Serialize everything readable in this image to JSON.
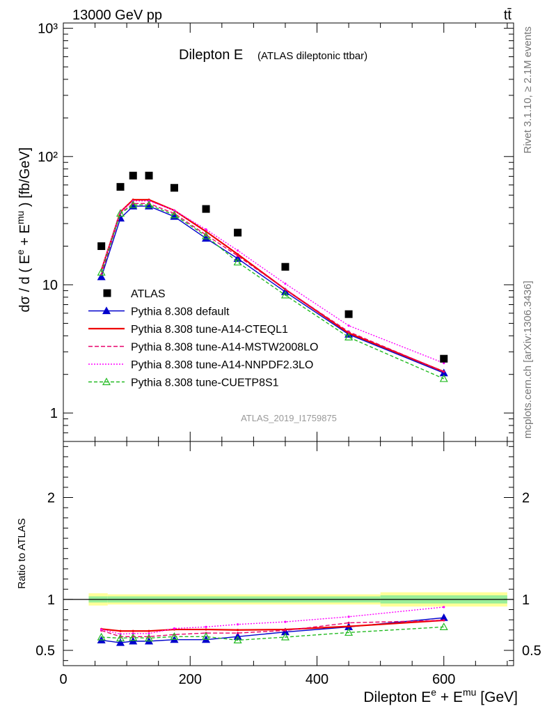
{
  "header": {
    "energy_label": "13000 GeV pp",
    "process_label": "tt̄",
    "rivet_label": "Rivet 3.1.10, ≥ 2.1M events",
    "mcplots_label": "mcplots.cern.ch [arXiv:1306.3436]",
    "analysis_label": "ATLAS_2019_I1759875"
  },
  "chart_data": [
    {
      "type": "line",
      "title": "Dilepton E",
      "subtitle": "(ATLAS dileptonic ttbar)",
      "ylabel": "dσ / d ( E^e + E^mu ) [fb/GeV]",
      "yscale": "log",
      "xlim": [
        0,
        710
      ],
      "ylim": [
        0.6,
        1100
      ],
      "y_ticks": [
        {
          "v": 1,
          "label": "1"
        },
        {
          "v": 10,
          "label": "10"
        },
        {
          "v": 100,
          "label": "10²"
        },
        {
          "v": 1000,
          "label": "10³"
        }
      ],
      "legend_position": "lower-left",
      "data": {
        "name": "ATLAS",
        "x": [
          60,
          90,
          110,
          135,
          175,
          225,
          275,
          350,
          450,
          600
        ],
        "y": [
          20,
          58,
          71,
          71,
          57,
          39,
          25.5,
          13.8,
          5.9,
          2.65
        ]
      },
      "series": [
        {
          "name": "Pythia 8.308 default",
          "color": "#0000cc",
          "dash": "",
          "marker": "triangle-filled",
          "y": [
            11.5,
            33,
            41,
            41,
            34,
            23,
            16,
            8.8,
            4.1,
            2.05
          ]
        },
        {
          "name": "Pythia 8.308 tune-A14-CTEQL1",
          "color": "#ee0000",
          "dash": "",
          "marker": "none",
          "y": [
            13,
            37,
            46,
            46,
            38,
            26,
            17.3,
            9.2,
            4.2,
            2.1
          ]
        },
        {
          "name": "Pythia 8.308 tune-A14-MSTW2008LO",
          "color": "#e8006a",
          "dash": "6,3",
          "marker": "none",
          "y": [
            12,
            36,
            43,
            43,
            36,
            24.5,
            16.8,
            9.2,
            4.3,
            2.1
          ]
        },
        {
          "name": "Pythia 8.308 tune-A14-NNPDF2.3LO",
          "color": "#ff00ff",
          "dash": "2,2",
          "marker": "none",
          "y": [
            13,
            37,
            45,
            45,
            38,
            27,
            18.5,
            10.2,
            4.8,
            2.45
          ]
        },
        {
          "name": "Pythia 8.308 tune-CUETP8S1",
          "color": "#22bb22",
          "dash": "5,3",
          "marker": "triangle-open",
          "y": [
            12.5,
            36,
            42,
            42,
            35,
            24,
            15,
            8.3,
            3.9,
            1.85
          ]
        }
      ]
    },
    {
      "type": "line",
      "xlabel": "Dilepton E^e + E^mu [GeV]",
      "ylabel": "Ratio to ATLAS",
      "xlim": [
        0,
        710
      ],
      "ylim": [
        0.35,
        2.55
      ],
      "x_ticks": [
        0,
        200,
        400,
        600
      ],
      "y_ticks": [
        {
          "v": 0.5,
          "label": "0.5"
        },
        {
          "v": 1,
          "label": "1"
        },
        {
          "v": 2,
          "label": "2"
        }
      ],
      "uncertainty_bins": [
        {
          "x": [
            40,
            70
          ],
          "stat": 0.03,
          "total": 0.06
        },
        {
          "x": [
            70,
            500
          ],
          "stat": 0.03,
          "total": 0.05
        },
        {
          "x": [
            500,
            700
          ],
          "stat": 0.04,
          "total": 0.07
        }
      ],
      "series": [
        {
          "name": "Pythia 8.308 default",
          "y": [
            0.6,
            0.575,
            0.59,
            0.59,
            0.605,
            0.605,
            0.635,
            0.68,
            0.73,
            0.82
          ]
        },
        {
          "name": "Pythia 8.308 tune-A14-CTEQL1",
          "y": [
            0.71,
            0.69,
            0.69,
            0.69,
            0.705,
            0.705,
            0.7,
            0.705,
            0.735,
            0.795
          ]
        },
        {
          "name": "Pythia 8.308 tune-A14-MSTW2008LO",
          "y": [
            0.695,
            0.635,
            0.635,
            0.635,
            0.655,
            0.67,
            0.67,
            0.695,
            0.77,
            0.795
          ]
        },
        {
          "name": "Pythia 8.308 tune-A14-NNPDF2.3LO",
          "y": [
            0.705,
            0.66,
            0.665,
            0.665,
            0.715,
            0.73,
            0.755,
            0.78,
            0.83,
            0.925
          ]
        },
        {
          "name": "Pythia 8.308 tune-CUETP8S1",
          "y": [
            0.63,
            0.62,
            0.625,
            0.62,
            0.635,
            0.635,
            0.6,
            0.63,
            0.675,
            0.73
          ]
        }
      ]
    }
  ]
}
